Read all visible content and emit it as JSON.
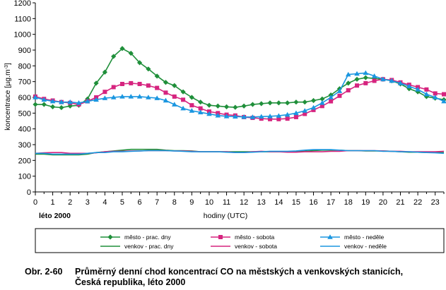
{
  "caption": {
    "number": "Obr. 2-60",
    "line1": "Průměrný denní chod koncentrací CO na městských a venkovských stanicích,",
    "line2": "Česká republika, léto 2000"
  },
  "chart_data": {
    "type": "line",
    "season_label": "léto 2000",
    "xlabel": "hodiny (UTC)",
    "ylabel": "koncentrace [µg.m⁻³]",
    "ylabel_main": "koncentrace [µg.m",
    "ylabel_sup": "-3",
    "ylabel_tail": "]",
    "ylim": [
      0,
      1200
    ],
    "yticks": [
      0,
      100,
      200,
      300,
      400,
      500,
      600,
      700,
      800,
      900,
      1000,
      1100,
      1200
    ],
    "xlim": [
      0,
      23.5
    ],
    "xticks": [
      0,
      1,
      2,
      3,
      4,
      5,
      6,
      7,
      8,
      9,
      10,
      11,
      12,
      13,
      14,
      15,
      16,
      17,
      18,
      19,
      20,
      21,
      22,
      23
    ],
    "grid": false,
    "legend_position": "bottom",
    "x": [
      0,
      0.5,
      1,
      1.5,
      2,
      2.5,
      3,
      3.5,
      4,
      4.5,
      5,
      5.5,
      6,
      6.5,
      7,
      7.5,
      8,
      8.5,
      9,
      9.5,
      10,
      10.5,
      11,
      11.5,
      12,
      12.5,
      13,
      13.5,
      14,
      14.5,
      15,
      15.5,
      16,
      16.5,
      17,
      17.5,
      18,
      18.5,
      19,
      19.5,
      20,
      20.5,
      21,
      21.5,
      22,
      22.5,
      23,
      23.5
    ],
    "series": [
      {
        "name": "město - prac. dny",
        "color": "#1f8f3a",
        "marker": "diamond",
        "values": [
          555,
          555,
          540,
          535,
          545,
          550,
          590,
          690,
          760,
          860,
          910,
          880,
          820,
          780,
          735,
          695,
          675,
          635,
          600,
          570,
          550,
          545,
          540,
          537,
          545,
          555,
          560,
          565,
          565,
          565,
          570,
          570,
          580,
          590,
          615,
          655,
          690,
          715,
          725,
          720,
          715,
          705,
          685,
          655,
          635,
          605,
          595,
          585
        ]
      },
      {
        "name": "venkov - prac. dny",
        "color": "#1f8f3a",
        "marker": "none",
        "values": [
          240,
          240,
          235,
          235,
          235,
          235,
          240,
          250,
          255,
          260,
          265,
          270,
          270,
          270,
          270,
          265,
          262,
          262,
          260,
          255,
          255,
          255,
          255,
          255,
          255,
          255,
          255,
          255,
          255,
          255,
          255,
          258,
          262,
          265,
          265,
          265,
          262,
          262,
          260,
          260,
          260,
          258,
          255,
          252,
          252,
          250,
          250,
          250
        ]
      },
      {
        "name": "město - sobota",
        "color": "#d6247f",
        "marker": "square",
        "values": [
          605,
          590,
          580,
          570,
          565,
          555,
          575,
          600,
          635,
          665,
          685,
          690,
          685,
          675,
          660,
          630,
          605,
          585,
          550,
          530,
          510,
          500,
          490,
          485,
          475,
          470,
          465,
          462,
          462,
          465,
          475,
          495,
          520,
          545,
          575,
          610,
          645,
          675,
          690,
          705,
          715,
          710,
          695,
          680,
          665,
          650,
          625,
          620
        ]
      },
      {
        "name": "venkov - sobota",
        "color": "#d6247f",
        "marker": "none",
        "values": [
          245,
          248,
          250,
          250,
          245,
          245,
          245,
          248,
          255,
          258,
          258,
          260,
          260,
          262,
          262,
          262,
          260,
          260,
          258,
          255,
          255,
          255,
          255,
          250,
          250,
          255,
          258,
          255,
          255,
          252,
          252,
          255,
          255,
          255,
          258,
          258,
          262,
          262,
          262,
          262,
          260,
          258,
          258,
          255,
          255,
          255,
          255,
          258
        ]
      },
      {
        "name": "město - neděle",
        "color": "#1a96e0",
        "marker": "triangle",
        "values": [
          600,
          585,
          575,
          570,
          570,
          565,
          575,
          585,
          595,
          600,
          605,
          605,
          605,
          600,
          595,
          580,
          555,
          530,
          515,
          505,
          495,
          485,
          480,
          478,
          476,
          475,
          478,
          480,
          483,
          490,
          500,
          515,
          535,
          565,
          600,
          640,
          745,
          750,
          755,
          735,
          715,
          705,
          690,
          670,
          650,
          620,
          600,
          575
        ]
      },
      {
        "name": "venkov - neděle",
        "color": "#1a96e0",
        "marker": "none",
        "values": [
          245,
          245,
          240,
          240,
          240,
          240,
          245,
          250,
          250,
          255,
          255,
          258,
          260,
          262,
          262,
          262,
          260,
          258,
          255,
          255,
          255,
          255,
          252,
          250,
          250,
          252,
          255,
          258,
          258,
          258,
          260,
          265,
          268,
          268,
          268,
          265,
          262,
          262,
          262,
          262,
          258,
          258,
          255,
          255,
          252,
          250,
          248,
          245
        ]
      }
    ]
  }
}
